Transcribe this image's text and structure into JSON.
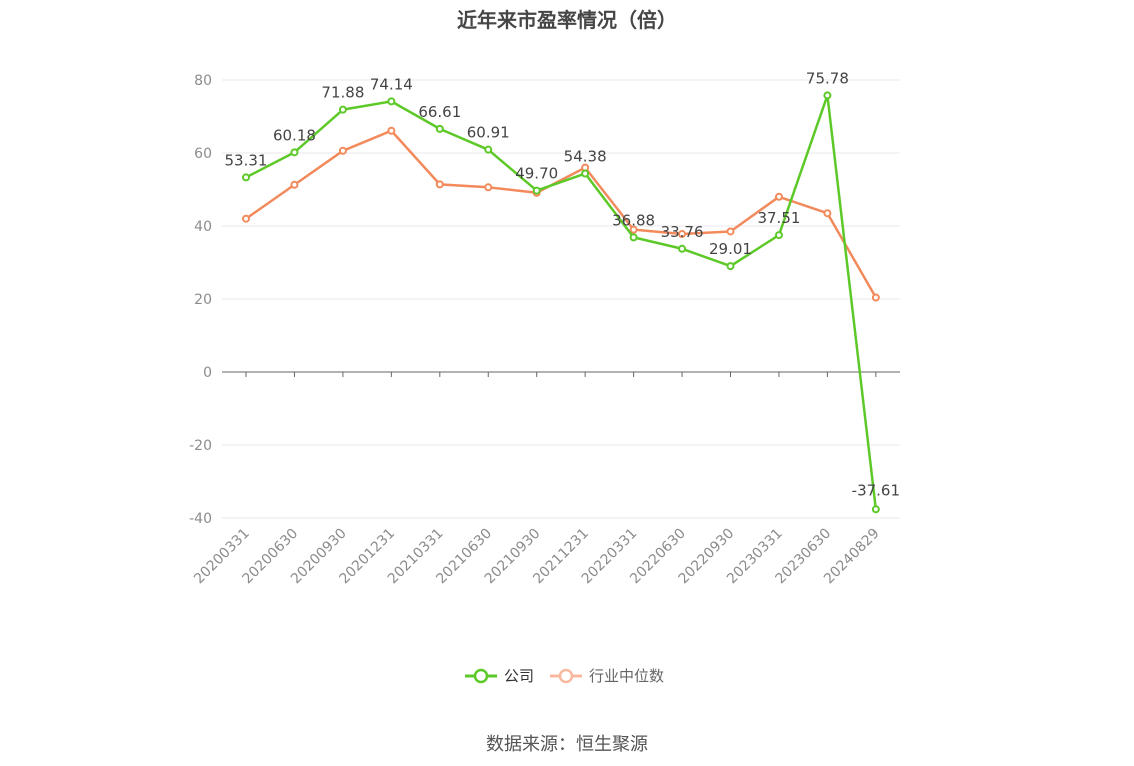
{
  "title": "近年来市盈率情况（倍）",
  "source": "数据来源：恒生聚源",
  "colors": {
    "company": "#5dc928",
    "industry": "#f28a5c",
    "industry_legend": "#f9b9a0",
    "grid": "#e8e8ec",
    "axis": "#666666"
  },
  "chart_data": {
    "type": "line",
    "title": "近年来市盈率情况（倍）",
    "categories": [
      "20200331",
      "20200630",
      "20200930",
      "20201231",
      "20210331",
      "20210630",
      "20210930",
      "20211231",
      "20220331",
      "20220630",
      "20220930",
      "20230331",
      "20230630",
      "20240829"
    ],
    "ylim": [
      -40,
      80
    ],
    "yticks": [
      -40,
      -20,
      0,
      20,
      40,
      60,
      80
    ],
    "grid": true,
    "legend": "bottom-center",
    "series": [
      {
        "name": "公司",
        "color": "#5dc928",
        "labels_shown": true,
        "values": [
          53.31,
          60.18,
          71.88,
          74.14,
          66.61,
          60.91,
          49.7,
          54.38,
          36.88,
          33.76,
          29.01,
          37.51,
          75.78,
          -37.61
        ]
      },
      {
        "name": "行业中位数",
        "color": "#f28a5c",
        "labels_shown": false,
        "values": [
          42.0,
          51.3,
          60.6,
          66.1,
          51.4,
          50.6,
          49.1,
          56.0,
          39.0,
          37.8,
          38.5,
          48.0,
          43.5,
          20.4
        ]
      }
    ],
    "data_labels": [
      "53.31",
      "60.18",
      "71.88",
      "74.14",
      "66.61",
      "60.91",
      "49.70",
      "54.38",
      "36.88",
      "33.76",
      "29.01",
      "37.51",
      "75.78",
      "-37.61"
    ]
  }
}
